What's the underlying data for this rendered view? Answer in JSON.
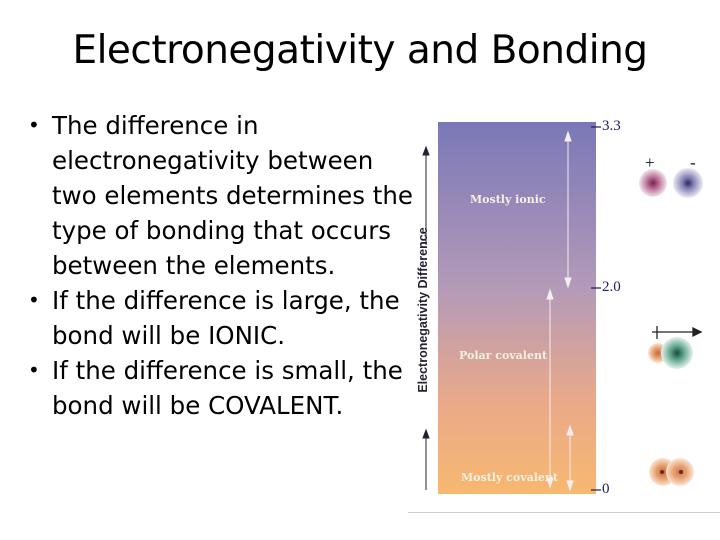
{
  "slide": {
    "title": "Electronegativity and Bonding",
    "bullets": [
      {
        "lines": [
          "The difference in",
          "electronegativity between",
          "two elements determines the",
          "type of bonding that occurs",
          "between the elements."
        ]
      },
      {
        "lines": [
          "If the difference is large, the",
          "bond will be IONIC."
        ]
      },
      {
        "lines": [
          "If the difference is small, the",
          "bond will be COVALENT."
        ]
      }
    ]
  },
  "figure": {
    "axis_label": "Electronegativity Difference",
    "ticks": [
      "3.3",
      "2.0",
      "0"
    ],
    "regions": [
      "Mostly ionic",
      "Polar covalent",
      "Mostly covalent"
    ],
    "charges": {
      "positive": "+",
      "negative": "-"
    },
    "colors": {
      "bar_top": "#7a78b8",
      "bar_bottom": "#f7b870",
      "tick_text": "#1a1a66"
    }
  }
}
